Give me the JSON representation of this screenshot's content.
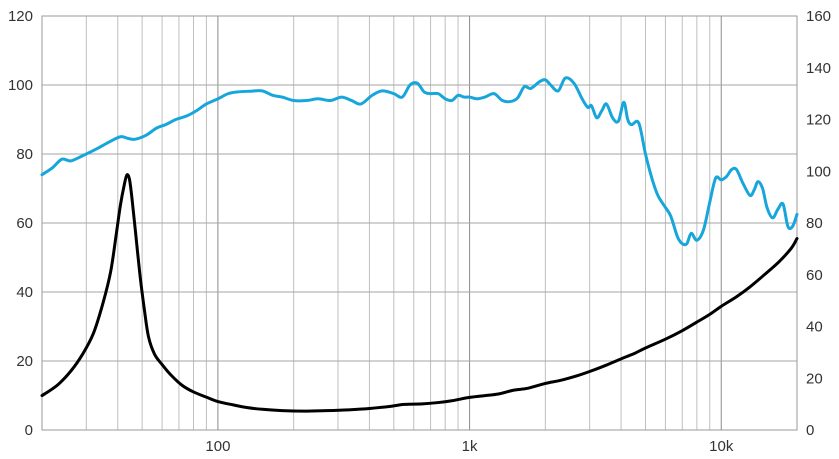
{
  "chart_data": {
    "type": "line",
    "title": "",
    "xlabel": "",
    "ylabel": "",
    "x_scale": "log",
    "xlim": [
      20,
      20000
    ],
    "ylim_left": [
      0,
      120
    ],
    "ylim_right": [
      0,
      160
    ],
    "grid": true,
    "x_tick_labels": [
      {
        "value": 100,
        "label": "100"
      },
      {
        "value": 1000,
        "label": "1k"
      },
      {
        "value": 10000,
        "label": "10k"
      }
    ],
    "y_left_ticks": [
      0,
      20,
      40,
      60,
      80,
      100,
      120
    ],
    "y_right_ticks": [
      0,
      20,
      40,
      60,
      80,
      100,
      120,
      140,
      160
    ],
    "series": [
      {
        "axis": "left",
        "color": "#17a6dc",
        "points": [
          [
            20,
            74
          ],
          [
            22,
            76
          ],
          [
            24,
            78.5
          ],
          [
            26,
            78
          ],
          [
            29,
            79.5
          ],
          [
            33,
            81.5
          ],
          [
            37,
            83.5
          ],
          [
            41,
            85
          ],
          [
            44,
            84.5
          ],
          [
            47,
            84.3
          ],
          [
            52,
            85.5
          ],
          [
            57,
            87.5
          ],
          [
            62,
            88.5
          ],
          [
            68,
            90
          ],
          [
            75,
            91
          ],
          [
            82,
            92.5
          ],
          [
            90,
            94.5
          ],
          [
            100,
            96
          ],
          [
            110,
            97.5
          ],
          [
            120,
            98
          ],
          [
            135,
            98.2
          ],
          [
            150,
            98.3
          ],
          [
            165,
            97
          ],
          [
            180,
            96.5
          ],
          [
            200,
            95.5
          ],
          [
            225,
            95.5
          ],
          [
            250,
            96
          ],
          [
            280,
            95.5
          ],
          [
            310,
            96.5
          ],
          [
            340,
            95.5
          ],
          [
            370,
            94.5
          ],
          [
            410,
            97
          ],
          [
            450,
            98.3
          ],
          [
            500,
            97.5
          ],
          [
            540,
            96.5
          ],
          [
            580,
            100
          ],
          [
            620,
            100.5
          ],
          [
            660,
            98
          ],
          [
            700,
            97.5
          ],
          [
            750,
            97.5
          ],
          [
            800,
            96
          ],
          [
            850,
            95.5
          ],
          [
            900,
            97
          ],
          [
            950,
            96.5
          ],
          [
            1000,
            96.5
          ],
          [
            1070,
            96
          ],
          [
            1150,
            96.5
          ],
          [
            1250,
            97.5
          ],
          [
            1350,
            95.5
          ],
          [
            1450,
            95.2
          ],
          [
            1550,
            96.2
          ],
          [
            1650,
            99.5
          ],
          [
            1750,
            99
          ],
          [
            1900,
            101
          ],
          [
            2000,
            101.5
          ],
          [
            2100,
            100
          ],
          [
            2250,
            98.3
          ],
          [
            2400,
            102
          ],
          [
            2600,
            100.5
          ],
          [
            2800,
            96
          ],
          [
            2950,
            93.5
          ],
          [
            3050,
            94
          ],
          [
            3200,
            90.5
          ],
          [
            3350,
            92.5
          ],
          [
            3500,
            94.5
          ],
          [
            3700,
            90.5
          ],
          [
            3900,
            89.5
          ],
          [
            4100,
            95
          ],
          [
            4250,
            90
          ],
          [
            4400,
            88.5
          ],
          [
            4700,
            89
          ],
          [
            5000,
            80
          ],
          [
            5300,
            73
          ],
          [
            5600,
            68
          ],
          [
            6000,
            64.5
          ],
          [
            6300,
            62
          ],
          [
            6700,
            56
          ],
          [
            7000,
            54
          ],
          [
            7300,
            54
          ],
          [
            7600,
            57
          ],
          [
            8000,
            55
          ],
          [
            8500,
            58
          ],
          [
            9000,
            66
          ],
          [
            9500,
            73
          ],
          [
            10000,
            72.5
          ],
          [
            10500,
            73.5
          ],
          [
            11000,
            75.5
          ],
          [
            11500,
            75.5
          ],
          [
            12200,
            71.5
          ],
          [
            13000,
            68
          ],
          [
            13500,
            69.5
          ],
          [
            14000,
            72
          ],
          [
            14600,
            70
          ],
          [
            15200,
            64.5
          ],
          [
            16000,
            61.5
          ],
          [
            16800,
            64
          ],
          [
            17600,
            65.5
          ],
          [
            18400,
            59
          ],
          [
            19200,
            59
          ],
          [
            20000,
            62.5
          ]
        ]
      },
      {
        "axis": "right",
        "color": "#000000",
        "points": [
          [
            20,
            13.3
          ],
          [
            23,
            17.3
          ],
          [
            26,
            22.7
          ],
          [
            29,
            29.3
          ],
          [
            32,
            37.3
          ],
          [
            35,
            49.3
          ],
          [
            37.5,
            61.3
          ],
          [
            39.5,
            76
          ],
          [
            41,
            87
          ],
          [
            42.5,
            95
          ],
          [
            43.5,
            98.6
          ],
          [
            44.5,
            97
          ],
          [
            45.5,
            90
          ],
          [
            47,
            77
          ],
          [
            49,
            60
          ],
          [
            51,
            46.7
          ],
          [
            53,
            36
          ],
          [
            56,
            29.3
          ],
          [
            60,
            25.3
          ],
          [
            65,
            21.3
          ],
          [
            72,
            17.3
          ],
          [
            80,
            14.7
          ],
          [
            90,
            12.7
          ],
          [
            100,
            11
          ],
          [
            115,
            9.7
          ],
          [
            130,
            8.7
          ],
          [
            150,
            8
          ],
          [
            180,
            7.5
          ],
          [
            220,
            7.3
          ],
          [
            270,
            7.5
          ],
          [
            330,
            7.8
          ],
          [
            400,
            8.3
          ],
          [
            480,
            9.1
          ],
          [
            550,
            9.9
          ],
          [
            650,
            10.1
          ],
          [
            750,
            10.6
          ],
          [
            850,
            11.3
          ],
          [
            1000,
            12.6
          ],
          [
            1150,
            13.3
          ],
          [
            1300,
            13.9
          ],
          [
            1500,
            15.4
          ],
          [
            1700,
            16.1
          ],
          [
            2000,
            18
          ],
          [
            2300,
            19.2
          ],
          [
            2700,
            21.1
          ],
          [
            3000,
            22.6
          ],
          [
            3500,
            25.1
          ],
          [
            4000,
            27.5
          ],
          [
            4500,
            29.5
          ],
          [
            5000,
            31.7
          ],
          [
            6000,
            35.1
          ],
          [
            7000,
            38.4
          ],
          [
            8000,
            41.7
          ],
          [
            9000,
            44.7
          ],
          [
            10000,
            47.8
          ],
          [
            11500,
            51.5
          ],
          [
            13000,
            55.3
          ],
          [
            15000,
            60.4
          ],
          [
            17000,
            65.1
          ],
          [
            19000,
            70.3
          ],
          [
            20000,
            74
          ]
        ]
      }
    ]
  }
}
